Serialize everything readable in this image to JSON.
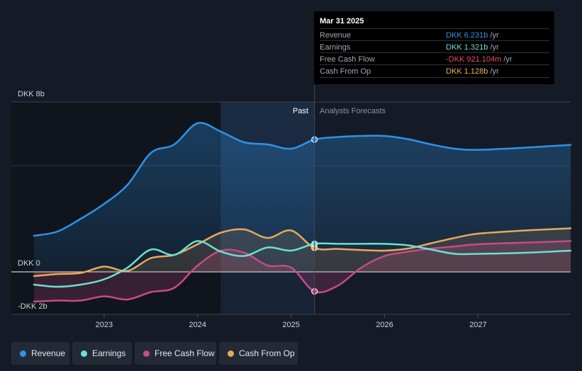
{
  "tooltip": {
    "date": "Mar 31 2025",
    "rows": [
      {
        "label": "Revenue",
        "value": "DKK 6.231b",
        "unit": " /yr",
        "color": "#2e93e8"
      },
      {
        "label": "Earnings",
        "value": "DKK 1.321b",
        "unit": " /yr",
        "color": "#6be0d4"
      },
      {
        "label": "Free Cash Flow",
        "value": "-DKK 921.104m",
        "unit": " /yr",
        "color": "#ef4a5f"
      },
      {
        "label": "Cash From Op",
        "value": "DKK 1.128b",
        "unit": " /yr",
        "color": "#f0b25c"
      }
    ]
  },
  "regions": {
    "past": "Past",
    "forecast": "Analysts Forecasts"
  },
  "legend": [
    {
      "label": "Revenue",
      "color": "#2e93e8"
    },
    {
      "label": "Earnings",
      "color": "#6be0d4"
    },
    {
      "label": "Free Cash Flow",
      "color": "#c84a86"
    },
    {
      "label": "Cash From Op",
      "color": "#e8a95b"
    }
  ],
  "chart_data": {
    "type": "line",
    "title": "",
    "ylabel": "DKK",
    "y_unit": "billions",
    "ylim": [
      -2,
      8
    ],
    "xlim": [
      2022.25,
      2027.99
    ],
    "y_tick_labels": [
      {
        "value": 8,
        "label": "DKK 8b"
      },
      {
        "value": 0,
        "label": "DKK 0"
      },
      {
        "value": -2,
        "label": "-DKK 2b"
      }
    ],
    "x_tick_labels": [
      {
        "value": 2023,
        "label": "2023"
      },
      {
        "value": 2024,
        "label": "2024"
      },
      {
        "value": 2025,
        "label": "2025"
      },
      {
        "value": 2026,
        "label": "2026"
      },
      {
        "value": 2027,
        "label": "2027"
      }
    ],
    "past_forecast_split": 2025.25,
    "highlight_band": [
      2024.25,
      2025.25
    ],
    "series": [
      {
        "name": "Revenue",
        "color": "#2e93e8",
        "fill": true,
        "x": [
          2022.25,
          2022.5,
          2022.75,
          2023.0,
          2023.25,
          2023.5,
          2023.75,
          2024.0,
          2024.25,
          2024.5,
          2024.75,
          2025.0,
          2025.25,
          2025.5,
          2025.75,
          2026.0,
          2026.25,
          2026.5,
          2026.75,
          2027.0,
          2027.5,
          2027.99
        ],
        "values": [
          1.7,
          1.9,
          2.5,
          3.2,
          4.1,
          5.6,
          6.0,
          7.0,
          6.6,
          6.1,
          6.0,
          5.8,
          6.23,
          6.35,
          6.4,
          6.4,
          6.25,
          6.0,
          5.8,
          5.75,
          5.85,
          5.98
        ]
      },
      {
        "name": "Earnings",
        "color": "#6be0d4",
        "fill": false,
        "x": [
          2022.25,
          2022.5,
          2022.75,
          2023.0,
          2023.25,
          2023.5,
          2023.75,
          2024.0,
          2024.25,
          2024.5,
          2024.75,
          2025.0,
          2025.25,
          2025.5,
          2025.75,
          2026.0,
          2026.25,
          2026.5,
          2026.75,
          2027.0,
          2027.5,
          2027.99
        ],
        "values": [
          -0.6,
          -0.7,
          -0.6,
          -0.35,
          0.2,
          1.05,
          0.8,
          1.45,
          0.95,
          0.75,
          1.15,
          1.0,
          1.32,
          1.32,
          1.32,
          1.32,
          1.25,
          1.05,
          0.85,
          0.85,
          0.9,
          1.0
        ]
      },
      {
        "name": "Free Cash Flow",
        "color": "#c84a86",
        "fill": true,
        "x": [
          2022.25,
          2022.5,
          2022.75,
          2023.0,
          2023.25,
          2023.5,
          2023.75,
          2024.0,
          2024.25,
          2024.5,
          2024.75,
          2025.0,
          2025.25,
          2025.5,
          2025.75,
          2026.0,
          2026.25,
          2026.5,
          2026.75,
          2027.0,
          2027.5,
          2027.99
        ],
        "values": [
          -1.4,
          -1.35,
          -1.35,
          -1.15,
          -1.3,
          -0.95,
          -0.75,
          0.3,
          1.0,
          0.9,
          0.3,
          0.2,
          -0.92,
          -0.65,
          0.2,
          0.75,
          0.95,
          1.1,
          1.2,
          1.3,
          1.38,
          1.45
        ]
      },
      {
        "name": "Cash From Op",
        "color": "#e8a95b",
        "fill": true,
        "x": [
          2022.25,
          2022.5,
          2022.75,
          2023.0,
          2023.25,
          2023.5,
          2023.75,
          2024.0,
          2024.25,
          2024.5,
          2024.75,
          2025.0,
          2025.25,
          2025.5,
          2025.75,
          2026.0,
          2026.25,
          2026.5,
          2026.75,
          2027.0,
          2027.5,
          2027.99
        ],
        "values": [
          -0.2,
          -0.1,
          -0.05,
          0.25,
          0.05,
          0.65,
          0.8,
          1.3,
          1.85,
          2.0,
          1.6,
          1.95,
          1.13,
          1.08,
          1.03,
          1.0,
          1.1,
          1.35,
          1.6,
          1.8,
          1.95,
          2.05
        ]
      }
    ]
  }
}
